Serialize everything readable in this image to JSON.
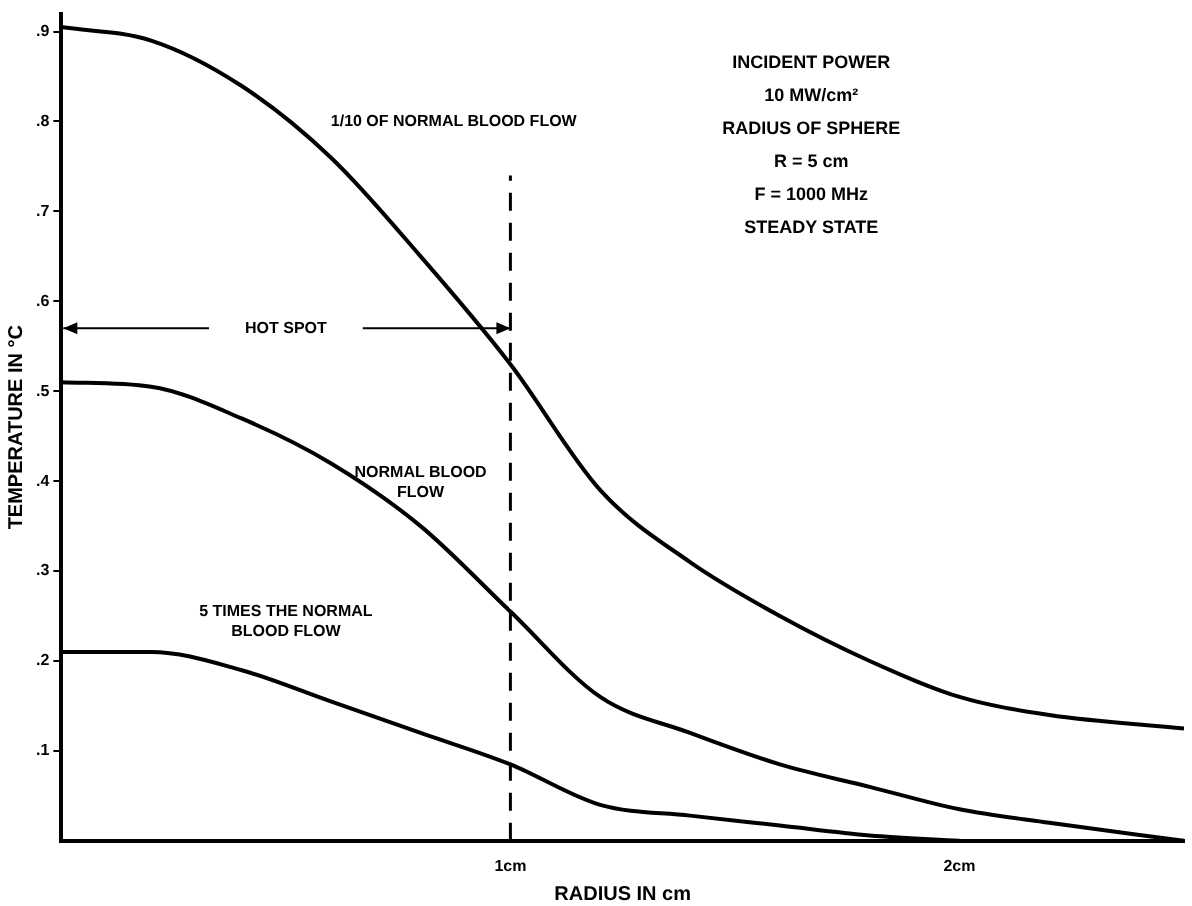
{
  "chart_data": {
    "type": "line",
    "xlabel": "RADIUS IN cm",
    "ylabel": "TEMPERATURE IN °C",
    "x": [
      0,
      0.2,
      0.4,
      0.6,
      0.8,
      1.0,
      1.2,
      1.4,
      1.6,
      1.8,
      2.0,
      2.2,
      2.5
    ],
    "series": [
      {
        "name": "1/10 OF NORMAL BLOOD FLOW",
        "color": "#000000",
        "values": [
          0.905,
          0.89,
          0.84,
          0.76,
          0.65,
          0.53,
          0.39,
          0.31,
          0.25,
          0.2,
          0.16,
          0.14,
          0.125
        ]
      },
      {
        "name": "NORMAL BLOOD FLOW",
        "color": "#000000",
        "values": [
          0.51,
          0.505,
          0.47,
          0.42,
          0.35,
          0.255,
          0.16,
          0.12,
          0.085,
          0.06,
          0.035,
          0.02,
          0
        ]
      },
      {
        "name": "5 TIMES THE NORMAL BLOOD FLOW",
        "color": "#000000",
        "values": [
          0.21,
          0.21,
          0.19,
          0.155,
          0.12,
          0.085,
          0.04,
          0.028,
          0.017,
          0.006,
          0,
          null,
          null
        ]
      }
    ],
    "xlim": [
      0,
      2.5
    ],
    "xticks": [
      {
        "value": 1,
        "label": "1cm"
      },
      {
        "value": 2,
        "label": "2cm"
      }
    ],
    "ylim": [
      0,
      0.92
    ],
    "yticks": [
      {
        "value": 0.1,
        "label": ".1"
      },
      {
        "value": 0.2,
        "label": ".2"
      },
      {
        "value": 0.3,
        "label": ".3"
      },
      {
        "value": 0.4,
        "label": ".4"
      },
      {
        "value": 0.5,
        "label": ".5"
      },
      {
        "value": 0.6,
        "label": ".6"
      },
      {
        "value": 0.7,
        "label": ".7"
      },
      {
        "value": 0.8,
        "label": ".8"
      },
      {
        "value": 0.9,
        "label": ".9"
      }
    ],
    "ref_lines": [
      {
        "axis": "x",
        "value": 1,
        "line_style": "dashed"
      }
    ],
    "annotations": [
      "HOT SPOT",
      "INCIDENT POWER",
      "10 MW/cm²",
      "RADIUS OF SPHERE",
      "R = 5 cm",
      "F = 1000 MHz",
      "STEADY STATE"
    ],
    "grid": false,
    "legend": false
  }
}
